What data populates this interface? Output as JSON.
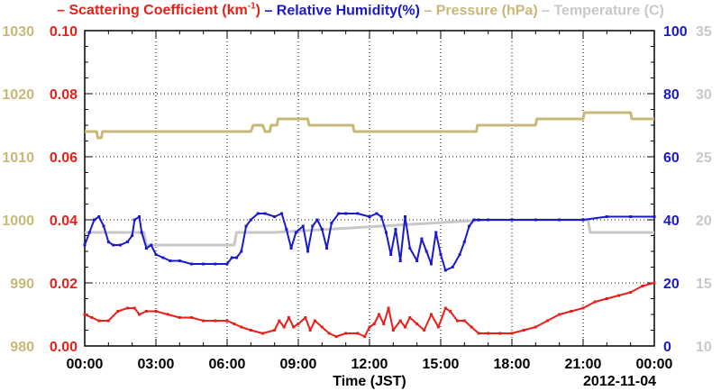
{
  "legend": {
    "scatter": "– Scattering Coefficient (km",
    "scatter_sup": "-1",
    "scatter_close": ")",
    "humidity": "– Relative Humidity(%)",
    "pressure": "– Pressure (hPa)",
    "temperature": "– Temperature (C)"
  },
  "colors": {
    "scatter": "#e8201a",
    "humidity": "#1a1acc",
    "pressure": "#c8b878",
    "temperature": "#c8c8c8"
  },
  "chart_data": {
    "type": "line",
    "xlabel": "Time (JST)",
    "date_label": "2012-11-04",
    "x_ticks": [
      "00:00",
      "03:00",
      "06:00",
      "09:00",
      "12:00",
      "15:00",
      "18:00",
      "21:00",
      "00:00"
    ],
    "x_range_hours": [
      0,
      24
    ],
    "axes": {
      "pressure": {
        "ticks": [
          "980",
          "990",
          "1000",
          "1010",
          "1020",
          "1030"
        ],
        "range": [
          980,
          1030
        ]
      },
      "scatter": {
        "ticks": [
          "0.00",
          "0.02",
          "0.04",
          "0.06",
          "0.08",
          "0.10"
        ],
        "range": [
          0,
          0.1
        ]
      },
      "humidity": {
        "ticks": [
          "0",
          "20",
          "40",
          "60",
          "80",
          "100"
        ],
        "range": [
          0,
          100
        ]
      },
      "temperature": {
        "ticks": [
          "10",
          "15",
          "20",
          "25",
          "30",
          "35"
        ],
        "range": [
          10,
          35
        ]
      }
    },
    "series": [
      {
        "name": "Scattering Coefficient (km-1)",
        "axis": "scatter",
        "points": [
          [
            0,
            0.01
          ],
          [
            0.3,
            0.009
          ],
          [
            0.6,
            0.008
          ],
          [
            1.0,
            0.008
          ],
          [
            1.4,
            0.011
          ],
          [
            1.8,
            0.012
          ],
          [
            2.1,
            0.012
          ],
          [
            2.3,
            0.01
          ],
          [
            2.6,
            0.011
          ],
          [
            3.0,
            0.011
          ],
          [
            3.5,
            0.01
          ],
          [
            4.0,
            0.009
          ],
          [
            4.5,
            0.009
          ],
          [
            5.0,
            0.008
          ],
          [
            5.5,
            0.008
          ],
          [
            6.0,
            0.008
          ],
          [
            6.3,
            0.007
          ],
          [
            6.6,
            0.006
          ],
          [
            7.0,
            0.005
          ],
          [
            7.5,
            0.004
          ],
          [
            8.0,
            0.005
          ],
          [
            8.2,
            0.008
          ],
          [
            8.4,
            0.006
          ],
          [
            8.6,
            0.009
          ],
          [
            8.8,
            0.006
          ],
          [
            9.0,
            0.007
          ],
          [
            9.3,
            0.009
          ],
          [
            9.5,
            0.005
          ],
          [
            9.7,
            0.008
          ],
          [
            10.0,
            0.006
          ],
          [
            10.3,
            0.004
          ],
          [
            10.6,
            0.003
          ],
          [
            11.0,
            0.004
          ],
          [
            11.5,
            0.004
          ],
          [
            11.8,
            0.003
          ],
          [
            12.0,
            0.006
          ],
          [
            12.2,
            0.007
          ],
          [
            12.4,
            0.01
          ],
          [
            12.6,
            0.007
          ],
          [
            12.8,
            0.012
          ],
          [
            13.0,
            0.005
          ],
          [
            13.3,
            0.008
          ],
          [
            13.5,
            0.006
          ],
          [
            13.7,
            0.009
          ],
          [
            14.0,
            0.007
          ],
          [
            14.3,
            0.005
          ],
          [
            14.6,
            0.01
          ],
          [
            14.9,
            0.006
          ],
          [
            15.2,
            0.012
          ],
          [
            15.4,
            0.011
          ],
          [
            15.7,
            0.008
          ],
          [
            16.0,
            0.008
          ],
          [
            16.3,
            0.006
          ],
          [
            16.6,
            0.004
          ],
          [
            17.0,
            0.004
          ],
          [
            17.5,
            0.004
          ],
          [
            18.0,
            0.004
          ],
          [
            18.5,
            0.005
          ],
          [
            19.0,
            0.006
          ],
          [
            19.5,
            0.008
          ],
          [
            20.0,
            0.01
          ],
          [
            20.5,
            0.011
          ],
          [
            21.0,
            0.012
          ],
          [
            21.5,
            0.014
          ],
          [
            22.0,
            0.015
          ],
          [
            22.5,
            0.016
          ],
          [
            23.0,
            0.017
          ],
          [
            23.5,
            0.019
          ],
          [
            24.0,
            0.02
          ]
        ]
      },
      {
        "name": "Relative Humidity(%)",
        "axis": "humidity",
        "points": [
          [
            0,
            32
          ],
          [
            0.2,
            36
          ],
          [
            0.4,
            40
          ],
          [
            0.6,
            41
          ],
          [
            0.8,
            38
          ],
          [
            1.0,
            33
          ],
          [
            1.2,
            32
          ],
          [
            1.5,
            32
          ],
          [
            1.8,
            33
          ],
          [
            2.0,
            35
          ],
          [
            2.1,
            40
          ],
          [
            2.3,
            41
          ],
          [
            2.4,
            36
          ],
          [
            2.6,
            31
          ],
          [
            2.8,
            32
          ],
          [
            3.0,
            29
          ],
          [
            3.3,
            28
          ],
          [
            3.6,
            27
          ],
          [
            4.0,
            27
          ],
          [
            4.5,
            26
          ],
          [
            5.0,
            26
          ],
          [
            5.5,
            26
          ],
          [
            6.0,
            26
          ],
          [
            6.2,
            28
          ],
          [
            6.4,
            28
          ],
          [
            6.6,
            30
          ],
          [
            6.8,
            38
          ],
          [
            7.0,
            40
          ],
          [
            7.3,
            42
          ],
          [
            7.6,
            42
          ],
          [
            8.0,
            41
          ],
          [
            8.3,
            42
          ],
          [
            8.5,
            37
          ],
          [
            8.7,
            31
          ],
          [
            8.9,
            36
          ],
          [
            9.2,
            38
          ],
          [
            9.4,
            30
          ],
          [
            9.6,
            38
          ],
          [
            9.8,
            40
          ],
          [
            10.0,
            37
          ],
          [
            10.2,
            31
          ],
          [
            10.4,
            39
          ],
          [
            10.7,
            42
          ],
          [
            11.0,
            42
          ],
          [
            11.5,
            42
          ],
          [
            12.0,
            41
          ],
          [
            12.3,
            42
          ],
          [
            12.5,
            41
          ],
          [
            12.7,
            36
          ],
          [
            12.9,
            29
          ],
          [
            13.1,
            37
          ],
          [
            13.3,
            27
          ],
          [
            13.5,
            41
          ],
          [
            13.7,
            31
          ],
          [
            14.0,
            27
          ],
          [
            14.2,
            34
          ],
          [
            14.4,
            30
          ],
          [
            14.6,
            26
          ],
          [
            14.8,
            36
          ],
          [
            15.0,
            29
          ],
          [
            15.2,
            24
          ],
          [
            15.5,
            25
          ],
          [
            15.8,
            29
          ],
          [
            16.0,
            33
          ],
          [
            16.2,
            38
          ],
          [
            16.4,
            40
          ],
          [
            16.6,
            40
          ],
          [
            17.0,
            40
          ],
          [
            18.0,
            40
          ],
          [
            19.0,
            40
          ],
          [
            20.0,
            40
          ],
          [
            21.0,
            40
          ],
          [
            22.0,
            41
          ],
          [
            23.0,
            41
          ],
          [
            24.0,
            41
          ]
        ]
      },
      {
        "name": "Pressure (hPa)",
        "axis": "pressure",
        "points": [
          [
            0,
            1014
          ],
          [
            0.5,
            1014
          ],
          [
            0.55,
            1013
          ],
          [
            0.7,
            1013
          ],
          [
            0.75,
            1014
          ],
          [
            1.0,
            1014
          ],
          [
            7.0,
            1014
          ],
          [
            7.1,
            1015
          ],
          [
            7.5,
            1015
          ],
          [
            7.6,
            1014
          ],
          [
            7.8,
            1014
          ],
          [
            7.85,
            1015
          ],
          [
            8.1,
            1015
          ],
          [
            8.15,
            1016
          ],
          [
            9.4,
            1016
          ],
          [
            9.45,
            1015
          ],
          [
            11.3,
            1015
          ],
          [
            11.35,
            1014
          ],
          [
            16.5,
            1014
          ],
          [
            16.55,
            1015
          ],
          [
            19.0,
            1015
          ],
          [
            19.05,
            1016
          ],
          [
            21.0,
            1016
          ],
          [
            21.05,
            1017
          ],
          [
            23.0,
            1017
          ],
          [
            23.05,
            1016
          ],
          [
            24.0,
            1016
          ]
        ]
      },
      {
        "name": "Temperature (C)",
        "axis": "temperature",
        "points": [
          [
            0,
            19
          ],
          [
            2.5,
            19
          ],
          [
            2.6,
            18
          ],
          [
            6.3,
            18
          ],
          [
            6.4,
            19
          ],
          [
            8.0,
            19
          ],
          [
            17.0,
            20
          ],
          [
            20.0,
            20
          ],
          [
            21.2,
            20
          ],
          [
            21.3,
            19
          ],
          [
            24.0,
            19
          ]
        ]
      }
    ]
  }
}
